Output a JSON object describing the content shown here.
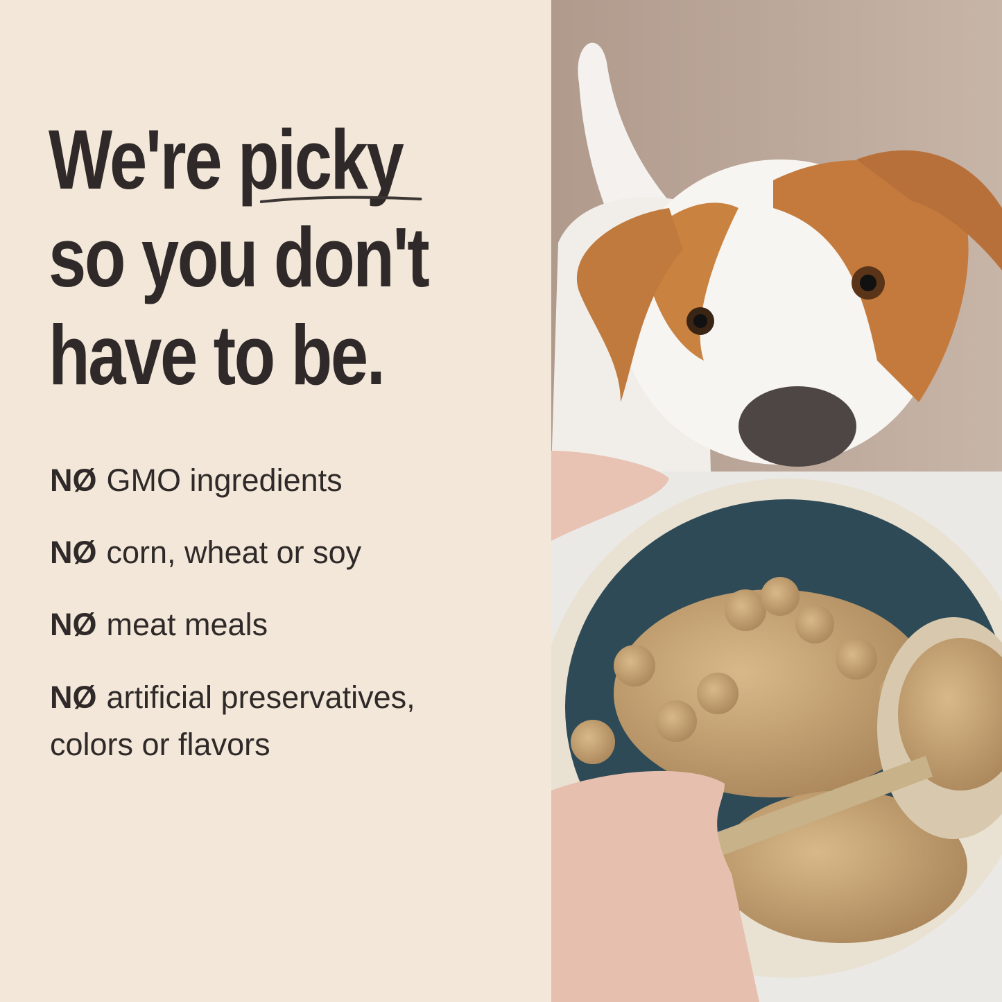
{
  "headline": {
    "line1_prefix": "We're",
    "line1_emphasis": "picky",
    "line2": "so you don't",
    "line3": "have to be."
  },
  "list": {
    "prefix": "NØ",
    "items": [
      {
        "text": "GMO ingredients"
      },
      {
        "text": "corn, wheat or soy"
      },
      {
        "text": "meat meals"
      },
      {
        "text": "artificial preservatives,",
        "text2": "colors or flavors"
      }
    ]
  },
  "colors": {
    "background": "#f2e7d8",
    "text": "#2f2a29"
  },
  "photo": {
    "subject": "dog-looking-at-food-bowl"
  }
}
